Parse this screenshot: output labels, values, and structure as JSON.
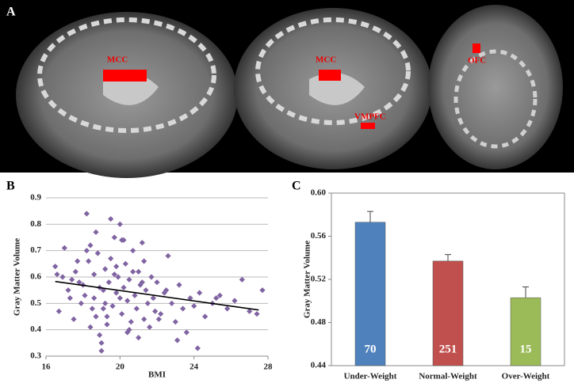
{
  "figure": {
    "panel_a": {
      "label": "A",
      "regions": [
        "MCC",
        "MCC",
        "VMPFC",
        "OFC"
      ]
    }
  },
  "chart_data": [
    {
      "type": "scatter",
      "label": "B",
      "x_label": "BMI",
      "y_label": "Gray Matter Volume",
      "xlim": [
        16,
        28
      ],
      "xticks": [
        16,
        20,
        24,
        28
      ],
      "ylim": [
        0.3,
        0.9
      ],
      "yticks": [
        0.3,
        0.4,
        0.5,
        0.6,
        0.7,
        0.8,
        0.9
      ],
      "grid": true,
      "color": "#8064a2",
      "x": [
        16.5,
        16.7,
        16.9,
        17.0,
        17.2,
        17.3,
        17.5,
        17.6,
        17.8,
        17.9,
        18.0,
        18.1,
        18.2,
        18.3,
        18.4,
        18.5,
        18.6,
        18.7,
        18.8,
        18.9,
        19.0,
        19.1,
        19.2,
        19.3,
        19.4,
        19.5,
        19.6,
        19.7,
        19.8,
        19.9,
        20.0,
        20.1,
        20.2,
        20.3,
        20.4,
        20.5,
        20.6,
        20.7,
        20.8,
        20.9,
        21.0,
        21.1,
        21.2,
        21.3,
        21.4,
        21.5,
        21.6,
        21.7,
        21.8,
        21.9,
        22.0,
        22.2,
        22.4,
        22.6,
        22.8,
        23.0,
        23.2,
        23.4,
        23.6,
        23.8,
        24.0,
        24.3,
        24.6,
        25.0,
        25.4,
        25.8,
        26.2,
        26.6,
        27.0,
        27.4,
        18.2,
        18.4,
        18.7,
        19.0,
        19.2,
        19.5,
        19.8,
        20.1,
        20.4,
        20.7,
        21.0,
        21.3,
        18.9,
        19.3,
        19.7,
        20.0,
        20.5,
        21.2,
        22.1,
        22.5,
        23.1,
        17.4,
        17.7,
        16.6,
        24.2,
        25.2,
        27.7,
        19.1,
        20.2,
        18.6
      ],
      "values": [
        0.64,
        0.47,
        0.6,
        0.71,
        0.55,
        0.52,
        0.44,
        0.62,
        0.58,
        0.5,
        0.57,
        0.53,
        0.84,
        0.66,
        0.72,
        0.48,
        0.61,
        0.45,
        0.69,
        0.38,
        0.32,
        0.55,
        0.63,
        0.42,
        0.58,
        0.67,
        0.49,
        0.75,
        0.54,
        0.6,
        0.8,
        0.46,
        0.56,
        0.65,
        0.51,
        0.59,
        0.43,
        0.7,
        0.53,
        0.48,
        0.62,
        0.57,
        0.73,
        0.44,
        0.55,
        0.5,
        0.41,
        0.6,
        0.52,
        0.47,
        0.58,
        0.46,
        0.54,
        0.68,
        0.5,
        0.43,
        0.57,
        0.48,
        0.39,
        0.52,
        0.49,
        0.54,
        0.45,
        0.5,
        0.53,
        0.48,
        0.51,
        0.59,
        0.47,
        0.46,
        0.7,
        0.41,
        0.77,
        0.35,
        0.5,
        0.82,
        0.64,
        0.74,
        0.39,
        0.62,
        0.37,
        0.66,
        0.56,
        0.45,
        0.61,
        0.52,
        0.4,
        0.58,
        0.44,
        0.55,
        0.36,
        0.59,
        0.66,
        0.61,
        0.33,
        0.52,
        0.55,
        0.48,
        0.74,
        0.52
      ],
      "trendline": {
        "x": [
          16.5,
          27.5
        ],
        "values": [
          0.583,
          0.475
        ]
      }
    },
    {
      "type": "bar",
      "label": "C",
      "y_label": "Gray Matter Volume",
      "categories": [
        "Under-Weight",
        "Normal-Weight",
        "Over-Weight"
      ],
      "values": [
        0.573,
        0.537,
        0.503
      ],
      "errors": [
        0.01,
        0.006,
        0.01
      ],
      "counts": [
        70,
        251,
        15
      ],
      "colors": [
        "#4f81bd",
        "#c0504d",
        "#9bbb59"
      ],
      "ylim": [
        0.44,
        0.6
      ],
      "yticks": [
        0.44,
        0.48,
        0.52,
        0.56,
        {
          "value": 0.6,
          "label": "0.60"
        }
      ]
    }
  ]
}
